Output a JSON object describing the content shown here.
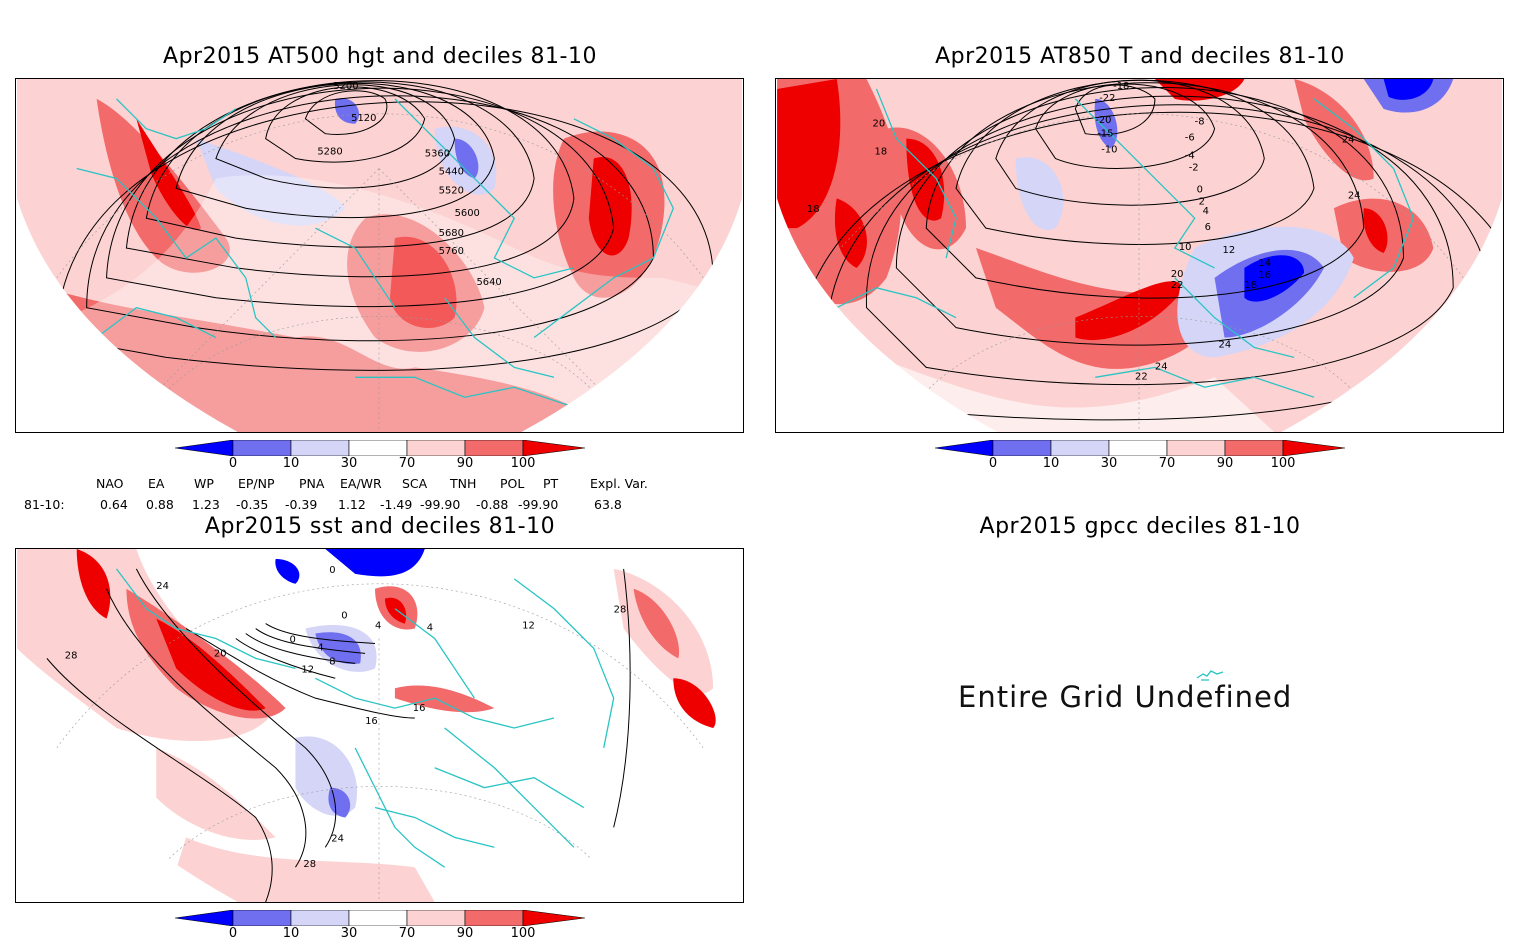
{
  "panels": {
    "p1": {
      "title": "Apr2015 AT500 hgt and deciles 81-10",
      "contour_labels": [
        "5200",
        "5120",
        "5280",
        "5360",
        "5440",
        "5520",
        "5600",
        "5680",
        "5760",
        "5640"
      ]
    },
    "p2": {
      "title": "Apr2015 AT850 T and deciles 81-10",
      "contour_labels": [
        "-18",
        "-22",
        "-20",
        "-15",
        "-10",
        "-8",
        "-6",
        "-4",
        "-2",
        "0",
        "2",
        "4",
        "6",
        "10",
        "12",
        "14",
        "16",
        "18",
        "20",
        "22",
        "24",
        "18",
        "20",
        "18",
        "24",
        "24",
        "22",
        "24"
      ]
    },
    "p3": {
      "title": "Apr2015 sst and deciles 81-10",
      "contour_labels": [
        "24",
        "28",
        "20",
        "12",
        "16",
        "16",
        "8",
        "4",
        "0",
        "0",
        "0",
        "4",
        "4",
        "12",
        "24",
        "28",
        "28"
      ]
    },
    "p4": {
      "title": "Apr2015 gpcc deciles 81-10",
      "message": "Entire Grid Undefined"
    }
  },
  "colorbar": {
    "ticks": [
      "0",
      "10",
      "30",
      "70",
      "90",
      "100"
    ],
    "colors": [
      "#0000ff",
      "#6f6ff0",
      "#d5d5f8",
      "#ffffff",
      "#fcd2d2",
      "#f26a6a",
      "#ee0000"
    ]
  },
  "indices": {
    "header": [
      "NAO",
      "EA",
      "WP",
      "EP/NP",
      "PNA",
      "EA/WR",
      "SCA",
      "TNH",
      "POL",
      "PT",
      "Expl. Var."
    ],
    "row_label": "81-10:",
    "values": [
      "0.64",
      "0.88",
      "1.23",
      "-0.35",
      "-0.39",
      "1.12",
      "-1.49",
      "-99.90",
      "-0.88",
      "-99.90",
      "63.8"
    ]
  }
}
